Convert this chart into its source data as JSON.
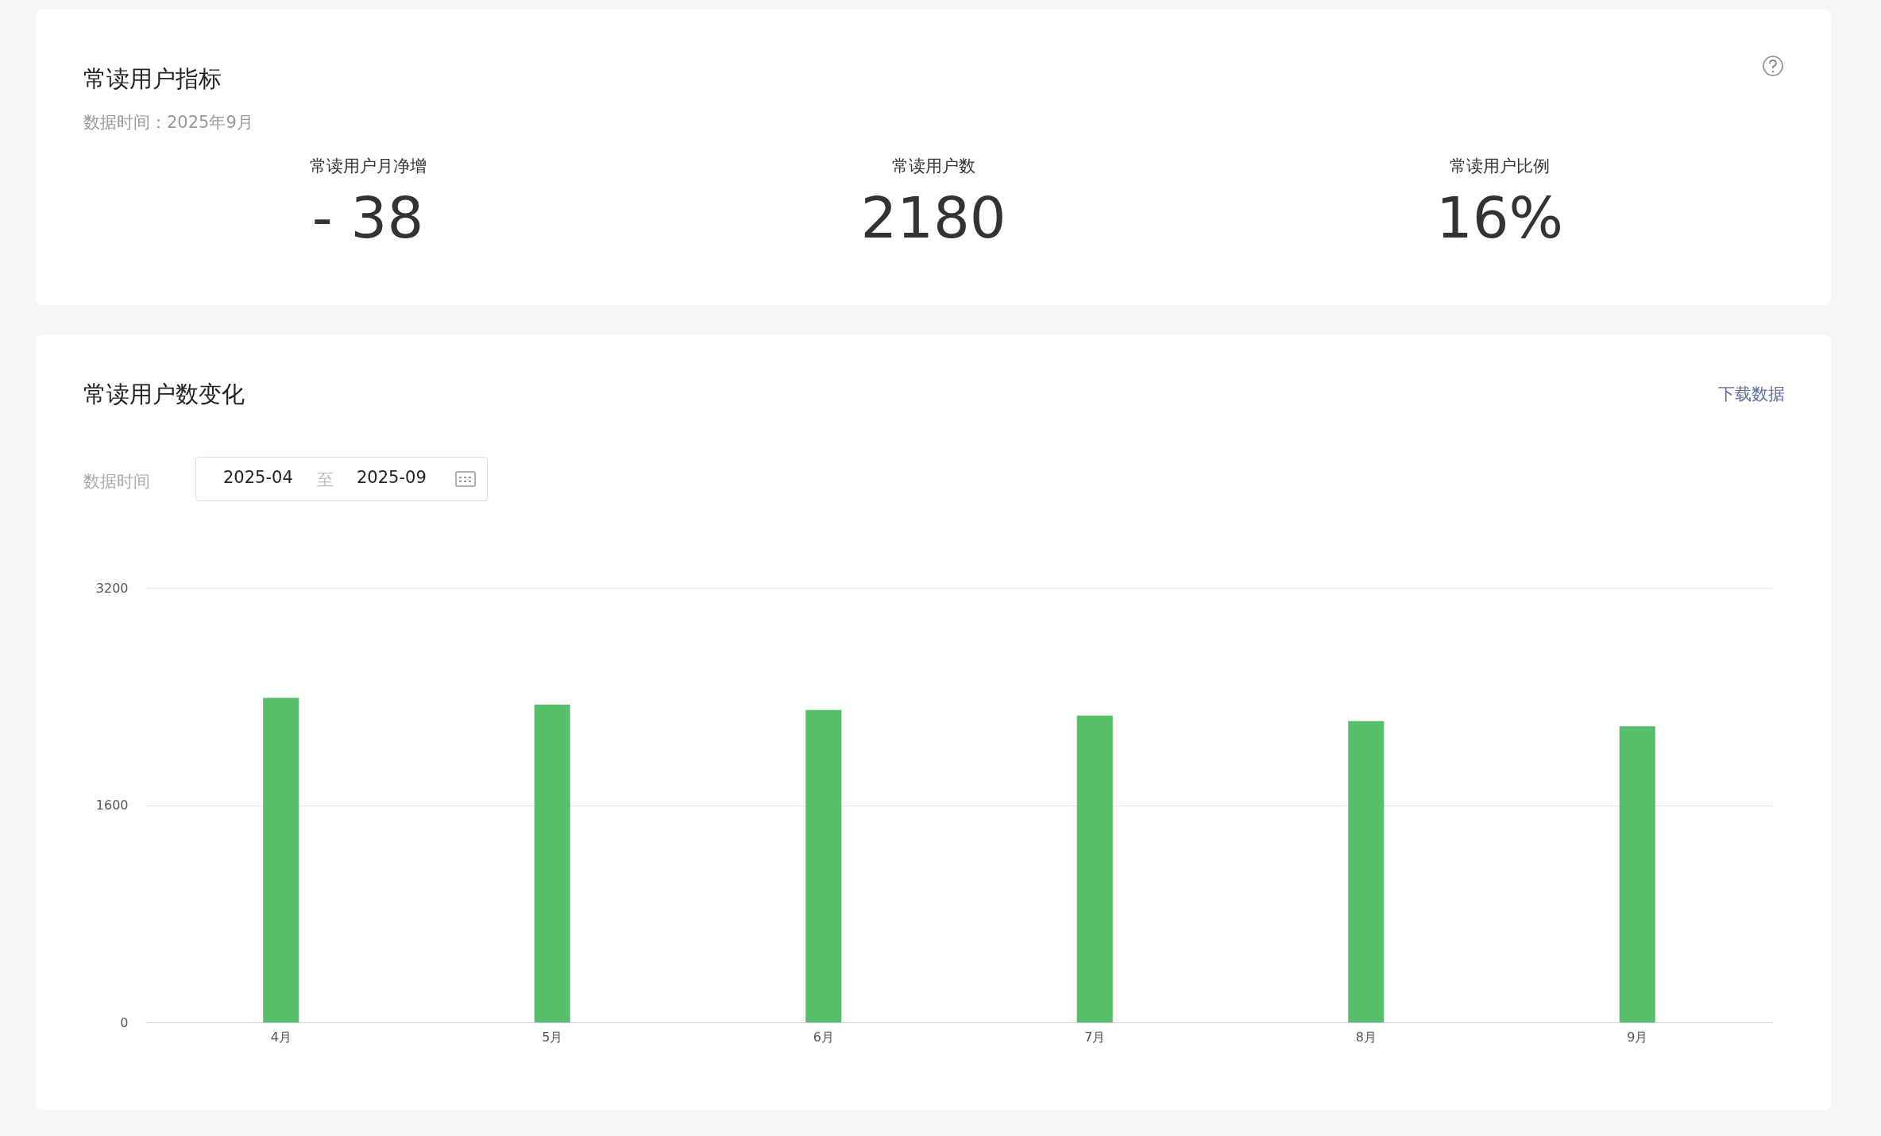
{
  "chart_data": [
    {
      "type": "other",
      "title": "常读用户指标",
      "subtitle": "数据时间：2025年9月",
      "annotations": [
        "常读用户月净增",
        "- 38",
        "常读用户数",
        "2180",
        "常读用户比例",
        "16%"
      ]
    },
    {
      "type": "bar",
      "title": "常读用户数变化",
      "annotations": [
        "下载数据",
        "数据时间",
        "2025-04",
        "至",
        "2025-09"
      ],
      "categories": [
        "4月",
        "5月",
        "6月",
        "7月",
        "8月",
        "9月"
      ],
      "values": [
        2390,
        2340,
        2300,
        2260,
        2218,
        2180
      ],
      "color": "#57bf6a",
      "ylim": [
        0,
        3200
      ],
      "yticks": [
        0,
        1600,
        3200
      ],
      "grid": "y"
    }
  ]
}
